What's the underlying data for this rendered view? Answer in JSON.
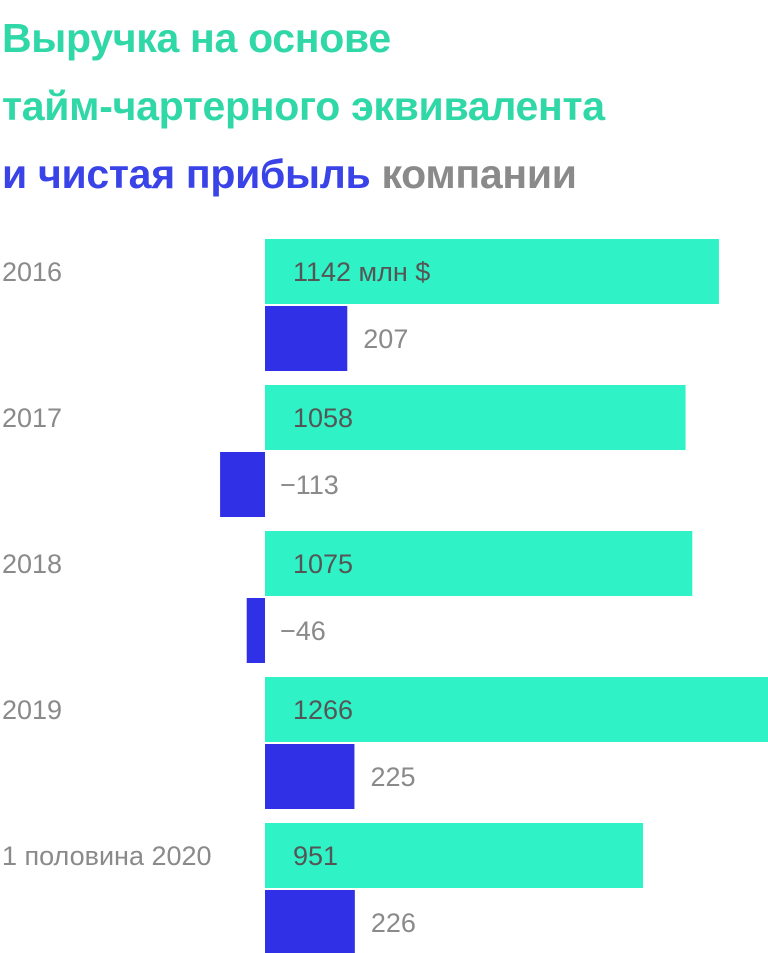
{
  "title": {
    "line1": "Выручка на основе",
    "line2": "тайм-чартерного эквивалента",
    "line3_revenue_part": "и чистая прибыль",
    "line3_rest": "компании"
  },
  "colors": {
    "revenue": "#2ff3c6",
    "profit": "#3030e6",
    "title_green": "#2fd8a6",
    "title_blue": "#3943e8",
    "label_gray": "#8a8a8a",
    "value_dark": "#555555"
  },
  "chart_data": {
    "type": "bar",
    "orientation": "horizontal",
    "categories": [
      "2016",
      "2017",
      "2018",
      "2019",
      "1 половина 2020"
    ],
    "series": [
      {
        "key": "revenue",
        "values": [
          1142,
          1058,
          1075,
          1266,
          951
        ]
      },
      {
        "key": "profit",
        "values": [
          207,
          -113,
          -46,
          225,
          226
        ]
      }
    ],
    "value_labels": {
      "revenue": [
        "1142 млн $",
        "1058",
        "1075",
        "1266",
        "951"
      ],
      "profit": [
        "207",
        "−113",
        "−46",
        "225",
        "226"
      ]
    },
    "grid": false,
    "legend": "none"
  }
}
